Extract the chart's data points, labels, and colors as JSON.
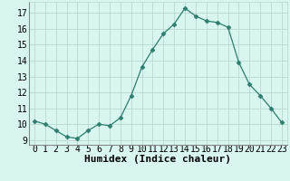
{
  "x": [
    0,
    1,
    2,
    3,
    4,
    5,
    6,
    7,
    8,
    9,
    10,
    11,
    12,
    13,
    14,
    15,
    16,
    17,
    18,
    19,
    20,
    21,
    22,
    23
  ],
  "y": [
    10.2,
    10.0,
    9.6,
    9.2,
    9.1,
    9.6,
    10.0,
    9.9,
    10.4,
    11.8,
    13.6,
    14.7,
    15.7,
    16.3,
    17.3,
    16.8,
    16.5,
    16.4,
    16.1,
    13.9,
    12.5,
    11.8,
    11.0,
    10.1
  ],
  "xlabel": "Humidex (Indice chaleur)",
  "ylim": [
    8.7,
    17.7
  ],
  "xlim": [
    -0.5,
    23.5
  ],
  "yticks": [
    9,
    10,
    11,
    12,
    13,
    14,
    15,
    16,
    17
  ],
  "xticks": [
    0,
    1,
    2,
    3,
    4,
    5,
    6,
    7,
    8,
    9,
    10,
    11,
    12,
    13,
    14,
    15,
    16,
    17,
    18,
    19,
    20,
    21,
    22,
    23
  ],
  "line_color": "#2e7d6e",
  "marker": "D",
  "marker_size": 2.5,
  "bg_color": "#d8f5f0",
  "grid_color": "#b8d8d4",
  "xlabel_fontsize": 8,
  "tick_fontsize": 7,
  "fig_width": 3.2,
  "fig_height": 2.0,
  "dpi": 100
}
